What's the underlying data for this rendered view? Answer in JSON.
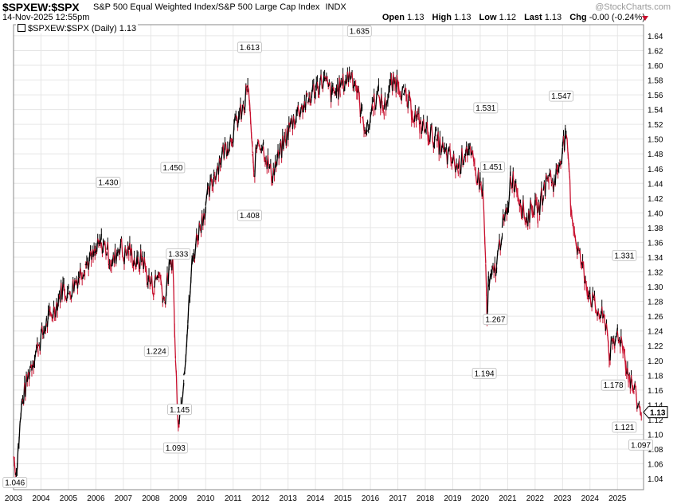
{
  "header": {
    "symbol": "$SPXEW:$SPX",
    "description": "S&P 500 Equal Weighted Index/S&P 500 Large Cap Index",
    "exchange": "INDX",
    "watermark": "@StockCharts.com",
    "date": "14-Nov-2025 12:55pm",
    "open_label": "Open",
    "open": "1.13",
    "high_label": "High",
    "high": "1.13",
    "low_label": "Low",
    "low": "1.12",
    "last_label": "Last",
    "last": "1.13",
    "chg_label": "Chg",
    "chg": "-0.00 (-0.24%)"
  },
  "legend": {
    "text": "$SPXEW:$SPX (Daily) 1.13"
  },
  "colors": {
    "up": "#000000",
    "down": "#c8102e",
    "grid": "#e6e6e6",
    "border": "#888888"
  },
  "chart_data": {
    "type": "line",
    "title": "$SPXEW:$SPX S&P 500 Equal Weighted Index/S&P 500 Large Cap Index",
    "x_range": [
      2003.0,
      2025.95
    ],
    "ylim": [
      1.025,
      1.655
    ],
    "y_ticks": [
      "1.04",
      "1.06",
      "1.08",
      "1.10",
      "1.12",
      "1.14",
      "1.16",
      "1.18",
      "1.20",
      "1.22",
      "1.24",
      "1.26",
      "1.28",
      "1.30",
      "1.32",
      "1.34",
      "1.36",
      "1.38",
      "1.40",
      "1.42",
      "1.44",
      "1.46",
      "1.48",
      "1.50",
      "1.52",
      "1.54",
      "1.56",
      "1.58",
      "1.60",
      "1.62",
      "1.64"
    ],
    "x_ticks": [
      "2003",
      "2004",
      "2005",
      "2006",
      "2007",
      "2008",
      "2009",
      "2010",
      "2011",
      "2012",
      "2013",
      "2014",
      "2015",
      "2016",
      "2017",
      "2018",
      "2019",
      "2020",
      "2021",
      "2022",
      "2023",
      "2024",
      "2025"
    ],
    "grid": true,
    "last_value": "1.13",
    "series": [
      {
        "x": [
          2003.0,
          2003.1,
          2003.3,
          2003.6,
          2003.9,
          2004.2,
          2004.5,
          2004.8,
          2005.0,
          2005.3,
          2005.6,
          2005.9,
          2006.2,
          2006.4,
          2006.6,
          2006.9,
          2007.0,
          2007.2,
          2007.5,
          2007.7,
          2007.9,
          2008.1,
          2008.3,
          2008.5,
          2008.7,
          2008.8,
          2008.9,
          2009.0,
          2009.1,
          2009.2,
          2009.35,
          2009.5,
          2009.7,
          2010.0,
          2010.3,
          2010.6,
          2010.9,
          2011.2,
          2011.4,
          2011.5,
          2011.6,
          2011.7,
          2011.75,
          2011.9,
          2012.1,
          2012.4,
          2012.6,
          2012.9,
          2013.1,
          2013.4,
          2013.7,
          2014.0,
          2014.3,
          2014.6,
          2014.9,
          2015.1,
          2015.3,
          2015.5,
          2015.7,
          2015.9,
          2016.1,
          2016.3,
          2016.5,
          2016.7,
          2017.0,
          2017.2,
          2017.5,
          2017.8,
          2018.1,
          2018.4,
          2018.7,
          2019.0,
          2019.2,
          2019.5,
          2019.8,
          2020.0,
          2020.1,
          2020.2,
          2020.25,
          2020.3,
          2020.4,
          2020.6,
          2020.8,
          2021.0,
          2021.1,
          2021.3,
          2021.5,
          2021.7,
          2021.9,
          2022.1,
          2022.3,
          2022.5,
          2022.7,
          2022.9,
          2023.0,
          2023.1,
          2023.2,
          2023.3,
          2023.5,
          2023.7,
          2023.9,
          2024.0,
          2024.2,
          2024.4,
          2024.6,
          2024.7,
          2024.9,
          2025.0,
          2025.2,
          2025.3,
          2025.4,
          2025.6,
          2025.75,
          2025.87
        ],
        "y": [
          1.07,
          1.05,
          1.14,
          1.19,
          1.22,
          1.25,
          1.27,
          1.3,
          1.29,
          1.31,
          1.33,
          1.34,
          1.36,
          1.35,
          1.33,
          1.36,
          1.34,
          1.35,
          1.33,
          1.34,
          1.31,
          1.3,
          1.32,
          1.28,
          1.33,
          1.34,
          1.2,
          1.12,
          1.14,
          1.18,
          1.25,
          1.33,
          1.37,
          1.41,
          1.45,
          1.48,
          1.5,
          1.53,
          1.54,
          1.57,
          1.55,
          1.48,
          1.45,
          1.5,
          1.49,
          1.45,
          1.47,
          1.5,
          1.52,
          1.54,
          1.55,
          1.57,
          1.58,
          1.56,
          1.57,
          1.58,
          1.59,
          1.57,
          1.53,
          1.51,
          1.55,
          1.56,
          1.54,
          1.57,
          1.58,
          1.56,
          1.54,
          1.52,
          1.51,
          1.5,
          1.48,
          1.47,
          1.46,
          1.49,
          1.46,
          1.44,
          1.43,
          1.33,
          1.25,
          1.3,
          1.31,
          1.33,
          1.38,
          1.4,
          1.45,
          1.44,
          1.41,
          1.39,
          1.41,
          1.4,
          1.43,
          1.45,
          1.44,
          1.47,
          1.49,
          1.5,
          1.48,
          1.41,
          1.36,
          1.33,
          1.3,
          1.29,
          1.27,
          1.26,
          1.25,
          1.21,
          1.22,
          1.24,
          1.22,
          1.2,
          1.18,
          1.16,
          1.14,
          1.13
        ]
      }
    ],
    "annotations": [
      {
        "x": 2003.05,
        "y": 1.046,
        "label": "1.046",
        "pos": "below"
      },
      {
        "x": 2006.45,
        "y": 1.43,
        "label": "1.430",
        "pos": "above"
      },
      {
        "x": 2008.2,
        "y": 1.224,
        "label": "1.224",
        "pos": "below"
      },
      {
        "x": 2008.8,
        "y": 1.45,
        "label": "1.450",
        "pos": "above"
      },
      {
        "x": 2008.9,
        "y": 1.093,
        "label": "1.093",
        "pos": "below"
      },
      {
        "x": 2009.0,
        "y": 1.333,
        "label": "1.333",
        "pos": "above"
      },
      {
        "x": 2009.05,
        "y": 1.145,
        "label": "1.145",
        "pos": "below"
      },
      {
        "x": 2011.6,
        "y": 1.613,
        "label": "1.613",
        "pos": "above"
      },
      {
        "x": 2011.6,
        "y": 1.408,
        "label": "1.408",
        "pos": "below"
      },
      {
        "x": 2015.6,
        "y": 1.635,
        "label": "1.635",
        "pos": "above"
      },
      {
        "x": 2020.2,
        "y": 1.531,
        "label": "1.531",
        "pos": "above"
      },
      {
        "x": 2020.15,
        "y": 1.194,
        "label": "1.194",
        "pos": "below"
      },
      {
        "x": 2020.45,
        "y": 1.451,
        "label": "1.451",
        "pos": "above"
      },
      {
        "x": 2020.55,
        "y": 1.267,
        "label": "1.267",
        "pos": "below"
      },
      {
        "x": 2022.95,
        "y": 1.547,
        "label": "1.547",
        "pos": "above"
      },
      {
        "x": 2024.85,
        "y": 1.178,
        "label": "1.178",
        "pos": "below"
      },
      {
        "x": 2025.25,
        "y": 1.331,
        "label": "1.331",
        "pos": "above"
      },
      {
        "x": 2025.25,
        "y": 1.121,
        "label": "1.121",
        "pos": "below"
      },
      {
        "x": 2025.85,
        "y": 1.097,
        "label": "1.097",
        "pos": "below"
      }
    ]
  }
}
